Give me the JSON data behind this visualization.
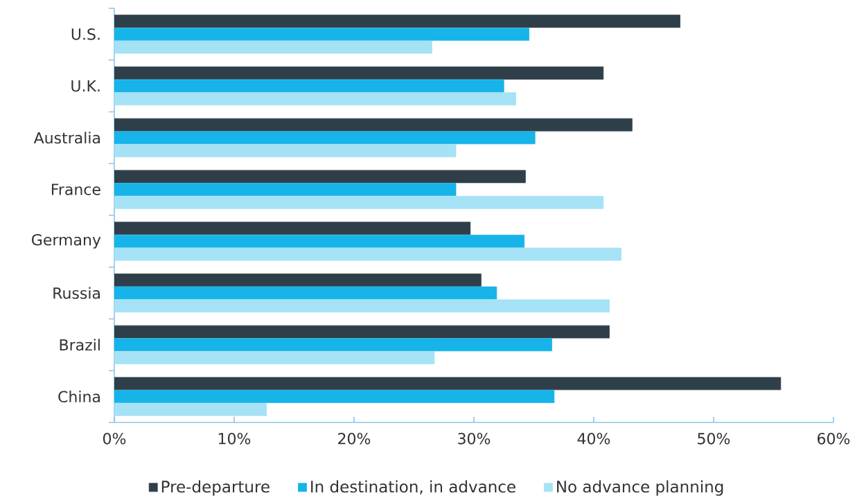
{
  "chart_data": {
    "type": "bar",
    "orientation": "horizontal",
    "categories": [
      "U.S.",
      "U.K.",
      "Australia",
      "France",
      "Germany",
      "Russia",
      "Brazil",
      "China"
    ],
    "series": [
      {
        "name": "Pre-departure",
        "color": "#2e3f4a",
        "values": [
          47.2,
          40.8,
          43.2,
          34.3,
          29.7,
          30.6,
          41.3,
          55.6
        ]
      },
      {
        "name": "In destination, in advance",
        "color": "#16b4e8",
        "values": [
          34.6,
          32.5,
          35.1,
          28.5,
          34.2,
          31.9,
          36.5,
          36.7
        ]
      },
      {
        "name": "No advance planning",
        "color": "#a6e2f5",
        "values": [
          26.5,
          33.5,
          28.5,
          40.8,
          42.3,
          41.3,
          26.7,
          12.7
        ]
      }
    ],
    "xlim": [
      0,
      60
    ],
    "xticks": [
      {
        "value": 0,
        "label": "0%"
      },
      {
        "value": 10,
        "label": "10%"
      },
      {
        "value": 20,
        "label": "20%"
      },
      {
        "value": 30,
        "label": "30%"
      },
      {
        "value": 40,
        "label": "40%"
      },
      {
        "value": 50,
        "label": "50%"
      },
      {
        "value": 60,
        "label": "60%"
      }
    ],
    "grid": false,
    "legend": "bottom"
  }
}
